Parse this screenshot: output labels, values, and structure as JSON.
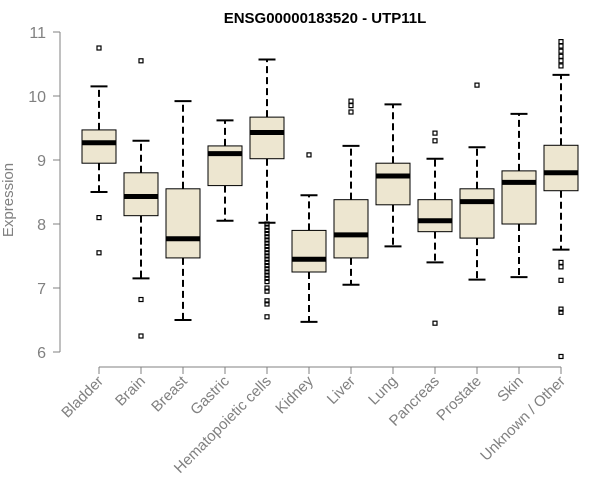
{
  "chart_data": {
    "type": "boxplot",
    "title": "ENSG00000183520 - UTP11L",
    "xlabel": "",
    "ylabel": "Expression",
    "ylim": [
      6,
      11
    ],
    "yticks": [
      6,
      7,
      8,
      9,
      10,
      11
    ],
    "grid": false,
    "legend": "none",
    "colors": {
      "box_fill": "#ede6d0",
      "box_stroke": "#000000",
      "median": "#000000",
      "axis": "#808080",
      "text": "#808080"
    },
    "categories": [
      "Bladder",
      "Brain",
      "Breast",
      "Gastric",
      "Hematopoietic cells",
      "Kidney",
      "Liver",
      "Lung",
      "Pancreas",
      "Prostate",
      "Skin",
      "Unknown / Other"
    ],
    "boxes": [
      {
        "category": "Bladder",
        "whisker_low": 8.5,
        "q1": 8.95,
        "median": 9.27,
        "q3": 9.47,
        "whisker_high": 10.15,
        "outliers": [
          10.75,
          8.1,
          7.55
        ]
      },
      {
        "category": "Brain",
        "whisker_low": 7.15,
        "q1": 8.13,
        "median": 8.43,
        "q3": 8.8,
        "whisker_high": 9.3,
        "outliers": [
          10.55,
          6.82,
          6.25
        ]
      },
      {
        "category": "Breast",
        "whisker_low": 6.5,
        "q1": 7.47,
        "median": 7.77,
        "q3": 8.55,
        "whisker_high": 9.92,
        "outliers": []
      },
      {
        "category": "Gastric",
        "whisker_low": 8.05,
        "q1": 8.6,
        "median": 9.1,
        "q3": 9.22,
        "whisker_high": 9.62,
        "outliers": []
      },
      {
        "category": "Hematopoietic cells",
        "whisker_low": 8.02,
        "q1": 9.02,
        "median": 9.43,
        "q3": 9.67,
        "whisker_high": 10.57,
        "outliers": [
          8.0,
          7.95,
          7.9,
          7.85,
          7.8,
          7.75,
          7.7,
          7.65,
          7.6,
          7.55,
          7.5,
          7.45,
          7.4,
          7.35,
          7.3,
          7.25,
          7.2,
          7.15,
          7.1,
          7.0,
          6.95,
          6.8,
          6.75,
          6.55
        ]
      },
      {
        "category": "Kidney",
        "whisker_low": 6.47,
        "q1": 7.25,
        "median": 7.45,
        "q3": 7.9,
        "whisker_high": 8.45,
        "outliers": [
          9.08
        ]
      },
      {
        "category": "Liver",
        "whisker_low": 7.05,
        "q1": 7.47,
        "median": 7.83,
        "q3": 8.38,
        "whisker_high": 9.22,
        "outliers": [
          9.92,
          9.85,
          9.75
        ]
      },
      {
        "category": "Lung",
        "whisker_low": 7.65,
        "q1": 8.3,
        "median": 8.75,
        "q3": 8.95,
        "whisker_high": 9.87,
        "outliers": []
      },
      {
        "category": "Pancreas",
        "whisker_low": 7.4,
        "q1": 7.88,
        "median": 8.05,
        "q3": 8.38,
        "whisker_high": 9.02,
        "outliers": [
          9.42,
          9.3,
          6.45
        ]
      },
      {
        "category": "Prostate",
        "whisker_low": 7.13,
        "q1": 7.78,
        "median": 8.35,
        "q3": 8.55,
        "whisker_high": 9.2,
        "outliers": [
          10.17
        ]
      },
      {
        "category": "Skin",
        "whisker_low": 7.17,
        "q1": 8.0,
        "median": 8.65,
        "q3": 8.83,
        "whisker_high": 9.72,
        "outliers": []
      },
      {
        "category": "Unknown / Other",
        "whisker_low": 7.6,
        "q1": 8.52,
        "median": 8.8,
        "q3": 9.23,
        "whisker_high": 10.33,
        "outliers": [
          10.85,
          10.78,
          10.7,
          10.62,
          10.55,
          10.47,
          7.4,
          7.33,
          7.12,
          6.67,
          6.62,
          5.93
        ]
      }
    ]
  }
}
